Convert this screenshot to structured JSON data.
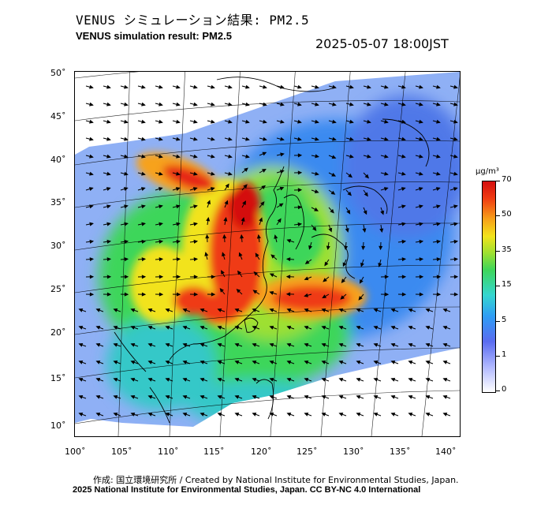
{
  "title_ja": "VENUS シミュレーション結果: PM2.5",
  "title_en": "VENUS simulation result: PM2.5",
  "timestamp": "2025-05-07 18:00JST",
  "lat_ticks": [
    "50˚",
    "45˚",
    "40˚",
    "35˚",
    "30˚",
    "25˚",
    "20˚",
    "15˚",
    "10˚"
  ],
  "lon_ticks": [
    "100˚",
    "105˚",
    "110˚",
    "115˚",
    "120˚",
    "125˚",
    "130˚",
    "135˚",
    "140˚"
  ],
  "colorbar": {
    "unit": "μg/m³",
    "labels": [
      "70",
      "50",
      "35",
      "15",
      "5",
      "1",
      "0"
    ],
    "colors": [
      "#ffffff",
      "#b0b8ff",
      "#5a6cf0",
      "#2f9df5",
      "#35d6d0",
      "#3ed65a",
      "#9ee030",
      "#f2e31b",
      "#f7a21a",
      "#ef3b12",
      "#d40f0f"
    ]
  },
  "credit_ja": "作成: 国立環境研究所 / Created by National Institute for Environmental Studies, Japan.",
  "credit_en": "2025 National Institute for Environmental Studies, Japan. CC BY-NC 4.0 International"
}
